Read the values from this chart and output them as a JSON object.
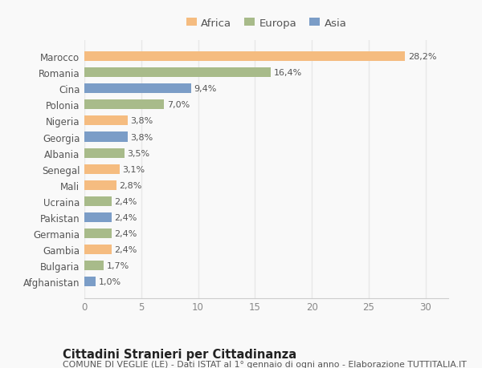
{
  "countries": [
    "Afghanistan",
    "Bulgaria",
    "Gambia",
    "Germania",
    "Pakistan",
    "Ucraina",
    "Mali",
    "Senegal",
    "Albania",
    "Georgia",
    "Nigeria",
    "Polonia",
    "Cina",
    "Romania",
    "Marocco"
  ],
  "values": [
    1.0,
    1.7,
    2.4,
    2.4,
    2.4,
    2.4,
    2.8,
    3.1,
    3.5,
    3.8,
    3.8,
    7.0,
    9.4,
    16.4,
    28.2
  ],
  "labels": [
    "1,0%",
    "1,7%",
    "2,4%",
    "2,4%",
    "2,4%",
    "2,4%",
    "2,8%",
    "3,1%",
    "3,5%",
    "3,8%",
    "3,8%",
    "7,0%",
    "9,4%",
    "16,4%",
    "28,2%"
  ],
  "colors": [
    "#7b9dc7",
    "#a8bb8a",
    "#f5bc80",
    "#a8bb8a",
    "#7b9dc7",
    "#a8bb8a",
    "#f5bc80",
    "#f5bc80",
    "#a8bb8a",
    "#7b9dc7",
    "#f5bc80",
    "#a8bb8a",
    "#7b9dc7",
    "#a8bb8a",
    "#f5bc80"
  ],
  "legend_labels": [
    "Africa",
    "Europa",
    "Asia"
  ],
  "legend_colors": [
    "#f5bc80",
    "#a8bb8a",
    "#7b9dc7"
  ],
  "title": "Cittadini Stranieri per Cittadinanza",
  "subtitle": "COMUNE DI VEGLIE (LE) - Dati ISTAT al 1° gennaio di ogni anno - Elaborazione TUTTITALIA.IT",
  "xlim": [
    0,
    32
  ],
  "xticks": [
    0,
    5,
    10,
    15,
    20,
    25,
    30
  ],
  "background_color": "#f9f9f9",
  "grid_color": "#e8e8e8",
  "bar_height": 0.6,
  "title_fontsize": 10.5,
  "subtitle_fontsize": 7.8,
  "label_fontsize": 8,
  "tick_fontsize": 8.5,
  "legend_fontsize": 9.5,
  "ytick_fontsize": 8.5
}
